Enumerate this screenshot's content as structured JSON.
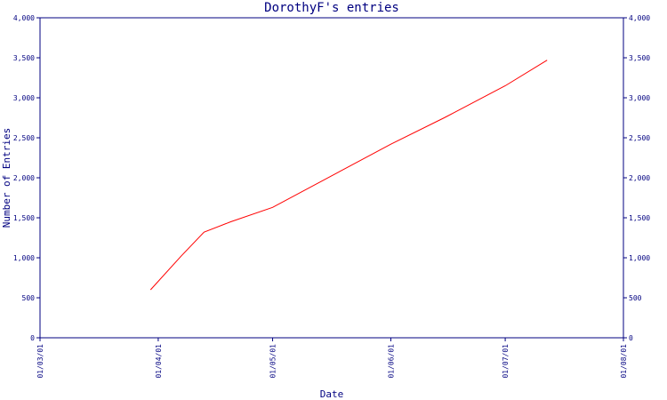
{
  "chart_data": {
    "type": "line",
    "title": "DorothyF's entries",
    "xlabel": "Date",
    "ylabel": "Number of Entries",
    "x_ticks": [
      "01/03/01",
      "01/04/01",
      "01/05/01",
      "01/06/01",
      "01/07/01",
      "01/08/01"
    ],
    "y_ticks_left": [
      "0",
      "500",
      "1,000",
      "1,500",
      "2,000",
      "2,500",
      "3,000",
      "3,500",
      "4,000"
    ],
    "y_ticks_right": [
      "0",
      "500",
      "1,000",
      "1,500",
      "2,000",
      "2,500",
      "3,000",
      "3,500",
      "4,000"
    ],
    "xlim": [
      "2001-03-01",
      "2001-08-01"
    ],
    "ylim": [
      0,
      4000
    ],
    "grid": false,
    "series": [
      {
        "color": "#ff0000",
        "points": [
          {
            "x": "2001-03-30",
            "y": 600
          },
          {
            "x": "2001-04-07",
            "y": 1020
          },
          {
            "x": "2001-04-13",
            "y": 1320
          },
          {
            "x": "2001-04-20",
            "y": 1450
          },
          {
            "x": "2001-05-01",
            "y": 1630
          },
          {
            "x": "2001-06-01",
            "y": 2420
          },
          {
            "x": "2001-06-15",
            "y": 2750
          },
          {
            "x": "2001-07-01",
            "y": 3150
          },
          {
            "x": "2001-07-12",
            "y": 3470
          }
        ]
      }
    ],
    "colors": {
      "axis": "#000080",
      "text": "#000080",
      "line": "#ff0000"
    }
  }
}
